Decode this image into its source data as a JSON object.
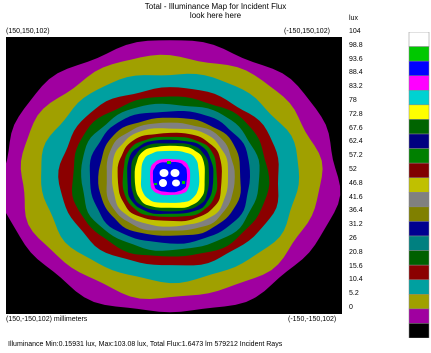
{
  "title": "Total - Illuminance Map for Incident Flux",
  "subtitle": "look here here",
  "corners": {
    "top_left": "(150,150,102)",
    "top_right": "(-150,150,102)",
    "bottom_left": "(150,-150,102) millimeters",
    "bottom_right": "(-150,-150,102)"
  },
  "footer": "Illuminance Min:0.15931 lux, Max:103.08 lux, Total Flux:1.6473 lm 579212 Incident Rays",
  "chart_data": {
    "type": "heatmap",
    "title": "Total - Illuminance Map for Incident Flux",
    "subtitle": "look here here",
    "colorbar_unit": "lux",
    "colorbar_ticks": [
      104,
      98.8,
      93.6,
      88.4,
      83.2,
      78,
      72.8,
      67.6,
      62.4,
      57.2,
      52,
      46.8,
      41.6,
      36.4,
      31.2,
      26,
      20.8,
      15.6,
      10.4,
      5.2,
      0
    ],
    "colorbar_colors": [
      "#ffffff",
      "#00c800",
      "#0000ff",
      "#ff00ff",
      "#00d2d2",
      "#ffff00",
      "#006400",
      "#000080",
      "#008000",
      "#800000",
      "#c0c000",
      "#808080",
      "#808000",
      "#000090",
      "#008080",
      "#006000",
      "#8b0000",
      "#00a0a0",
      "#a0a000",
      "#a000a0",
      "#000000"
    ],
    "illuminance_min": 0.15931,
    "illuminance_max": 103.08,
    "total_flux_lm": 1.6473,
    "incident_rays": 579212
  }
}
